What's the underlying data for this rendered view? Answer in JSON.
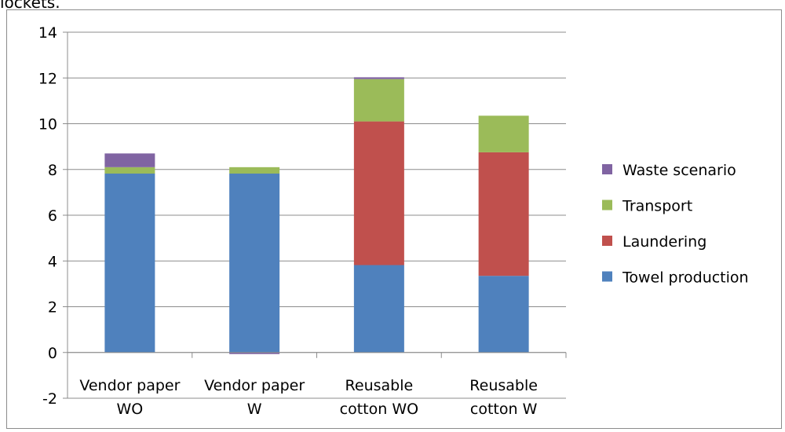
{
  "top_text": "lockets.",
  "chart_data": {
    "type": "bar",
    "stacked": true,
    "categories": [
      [
        "Vendor paper",
        "WO"
      ],
      [
        "Vendor paper",
        "W"
      ],
      [
        "Reusable",
        "cotton WO"
      ],
      [
        "Reusable",
        "cotton W"
      ]
    ],
    "series": [
      {
        "name": "Towel production",
        "color": "#4f81bd",
        "values": [
          7.82,
          7.82,
          3.82,
          3.35
        ]
      },
      {
        "name": "Laundering",
        "color": "#c0504d",
        "values": [
          0,
          0,
          6.28,
          5.4
        ]
      },
      {
        "name": "Transport",
        "color": "#9bbb59",
        "values": [
          0.28,
          0.28,
          1.85,
          1.6
        ]
      },
      {
        "name": "Waste scenario",
        "color": "#8064a2",
        "values": [
          0.6,
          -0.07,
          0.08,
          0
        ]
      }
    ],
    "ylim": [
      -2,
      14
    ],
    "yticks": [
      -2,
      0,
      2,
      4,
      6,
      8,
      10,
      12,
      14
    ],
    "grid": true,
    "legend_position": "right",
    "legend_order": [
      "Waste scenario",
      "Transport",
      "Laundering",
      "Towel production"
    ]
  }
}
